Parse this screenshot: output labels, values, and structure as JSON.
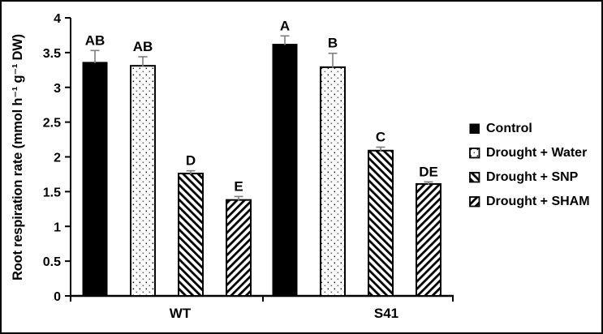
{
  "chart_data": {
    "type": "bar",
    "title": "",
    "ylabel": "Root respiration rate (mmol h⁻¹ g⁻¹ DW)",
    "xlabel": "",
    "ylim": [
      0,
      4
    ],
    "yticks": [
      0,
      0.5,
      1,
      1.5,
      2,
      2.5,
      3,
      3.5,
      4
    ],
    "categories": [
      "WT",
      "S41"
    ],
    "series": [
      {
        "name": "Control",
        "pattern": "solid",
        "values": [
          3.36,
          3.62
        ],
        "errors": [
          0.17,
          0.12
        ],
        "sig_labels": [
          "AB",
          "A"
        ]
      },
      {
        "name": "Drought + Water",
        "pattern": "dots",
        "values": [
          3.31,
          3.29
        ],
        "errors": [
          0.13,
          0.2
        ],
        "sig_labels": [
          "AB",
          "B"
        ]
      },
      {
        "name": "Drought + SNP",
        "pattern": "hatch-back",
        "values": [
          1.76,
          2.09
        ],
        "errors": [
          0.04,
          0.05
        ],
        "sig_labels": [
          "D",
          "C"
        ]
      },
      {
        "name": "Drought + SHAM",
        "pattern": "hatch-fwd",
        "values": [
          1.38,
          1.61
        ],
        "errors": [
          0.05,
          0.03
        ],
        "sig_labels": [
          "E",
          "DE"
        ]
      }
    ],
    "legend_position": "right",
    "grid": false,
    "colors": {
      "bar": "#000000",
      "bar_outline": "#000000",
      "error_bar": "#7f7f7f",
      "text": "#000000",
      "background": "#ffffff",
      "border": "#000000"
    }
  }
}
